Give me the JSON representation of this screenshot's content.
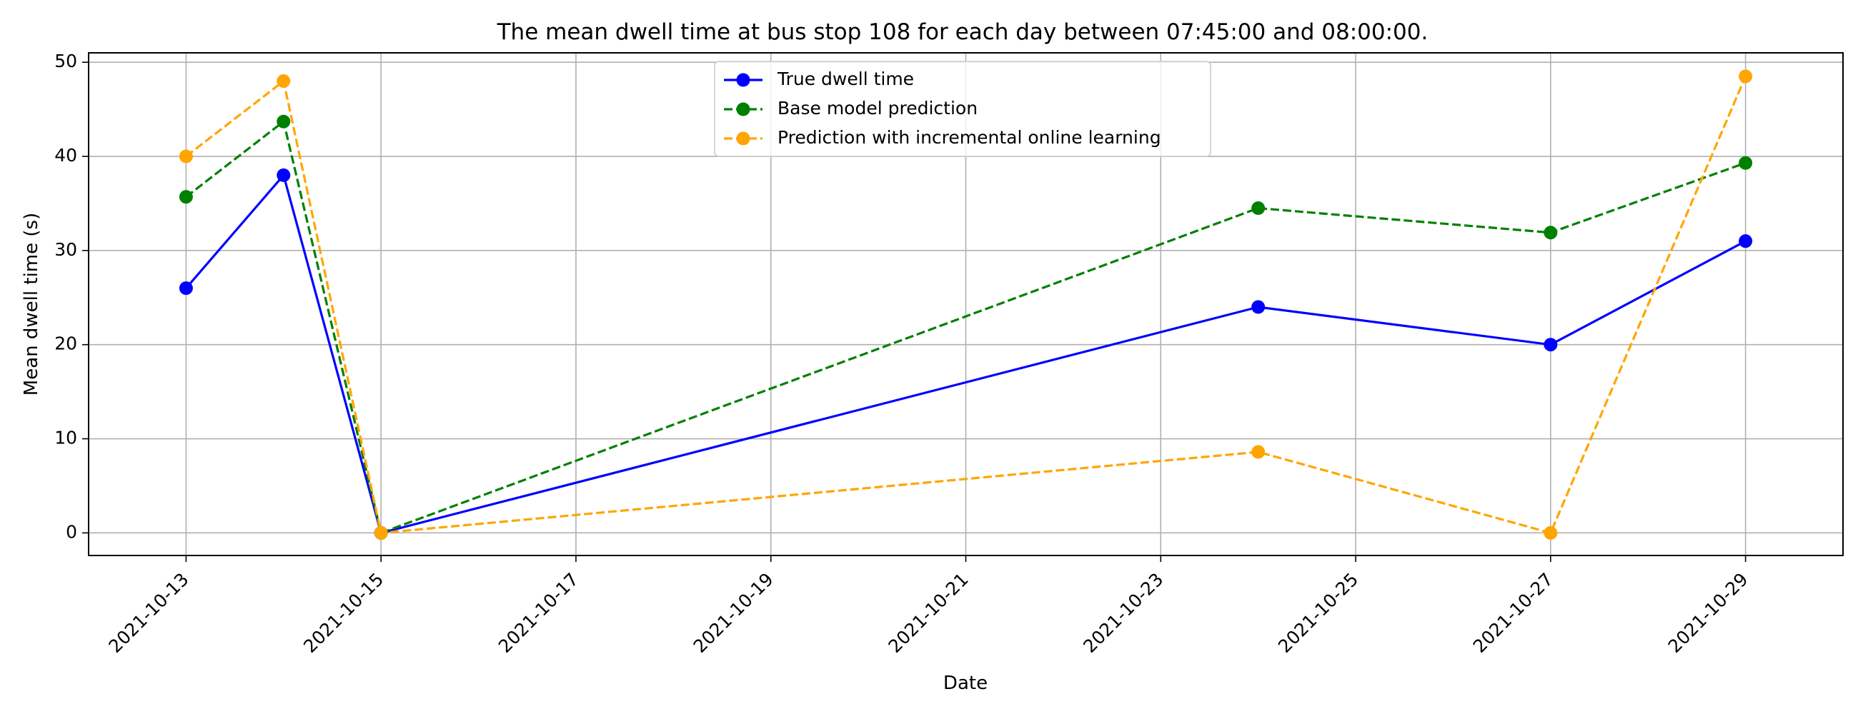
{
  "chart_data": {
    "type": "line",
    "title": "The mean dwell time at bus stop 108 for each day between 07:45:00 and 08:00:00.",
    "xlabel": "Date",
    "ylabel": "Mean dwell time (s)",
    "x_ticks": [
      "2021-10-13",
      "2021-10-15",
      "2021-10-17",
      "2021-10-19",
      "2021-10-21",
      "2021-10-23",
      "2021-10-25",
      "2021-10-27",
      "2021-10-29"
    ],
    "y_ticks": [
      0,
      10,
      20,
      30,
      40,
      50
    ],
    "xlim": [
      "2021-10-12",
      "2021-10-30"
    ],
    "ylim": [
      -2.4,
      51
    ],
    "grid": true,
    "legend_position": "upper-center",
    "x": [
      "2021-10-13",
      "2021-10-14",
      "2021-10-15",
      "2021-10-24",
      "2021-10-27",
      "2021-10-29"
    ],
    "series": [
      {
        "name": "True dwell time",
        "color": "#0000ff",
        "dash": "solid",
        "values": [
          26,
          38,
          0,
          24,
          20,
          31
        ]
      },
      {
        "name": "Base model prediction",
        "color": "#008000",
        "dash": "dashed",
        "values": [
          35.7,
          43.7,
          0,
          34.5,
          31.9,
          39.3
        ]
      },
      {
        "name": "Prediction with incremental online learning",
        "color": "#ffa500",
        "dash": "dashed",
        "values": [
          40,
          48,
          0,
          8.6,
          0,
          48.5
        ]
      }
    ]
  }
}
